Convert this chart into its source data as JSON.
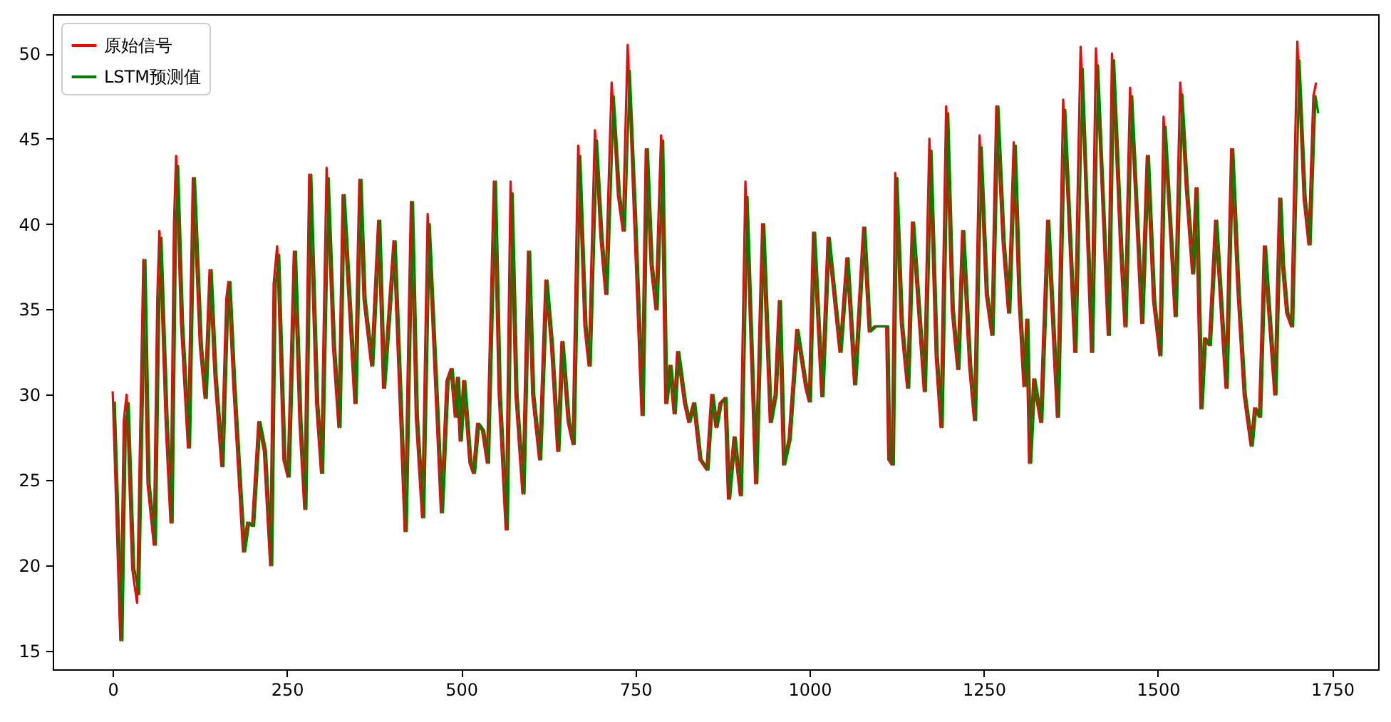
{
  "chart_data": {
    "type": "line",
    "x": [
      0,
      11,
      16,
      20,
      28,
      35,
      44,
      50,
      59,
      64,
      67,
      76,
      83,
      88,
      91,
      98,
      108,
      115,
      125,
      132,
      139,
      146,
      156,
      163,
      166,
      173,
      187,
      193,
      200,
      209,
      217,
      226,
      231,
      236,
      245,
      251,
      260,
      268,
      275,
      282,
      292,
      299,
      307,
      316,
      324,
      330,
      340,
      347,
      354,
      360,
      371,
      381,
      388,
      403,
      419,
      428,
      435,
      444,
      452,
      462,
      471,
      479,
      485,
      491,
      494,
      498,
      503,
      512,
      517,
      523,
      530,
      537,
      547,
      554,
      564,
      571,
      578,
      588,
      596,
      602,
      612,
      621,
      629,
      638,
      644,
      653,
      660,
      668,
      677,
      683,
      692,
      700,
      707,
      716,
      725,
      732,
      739,
      748,
      759,
      765,
      772,
      779,
      787,
      793,
      799,
      805,
      810,
      820,
      826,
      833,
      842,
      852,
      859,
      865,
      871,
      878,
      883,
      891,
      900,
      908,
      922,
      932,
      943,
      950,
      956,
      962,
      970,
      981,
      994,
      999,
      1005,
      1017,
      1026,
      1043,
      1053,
      1064,
      1077,
      1085,
      1093,
      1110,
      1113,
      1118,
      1123,
      1131,
      1140,
      1147,
      1164,
      1172,
      1181,
      1188,
      1196,
      1204,
      1212,
      1219,
      1229,
      1236,
      1244,
      1253,
      1261,
      1268,
      1277,
      1285,
      1293,
      1300,
      1307,
      1311,
      1315,
      1321,
      1331,
      1341,
      1355,
      1364,
      1380,
      1389,
      1404,
      1411,
      1428,
      1434,
      1446,
      1452,
      1460,
      1476,
      1484,
      1493,
      1502,
      1508,
      1524,
      1532,
      1540,
      1549,
      1554,
      1561,
      1566,
      1573,
      1582,
      1597,
      1605,
      1614,
      1623,
      1633,
      1638,
      1645,
      1652,
      1657,
      1667,
      1674,
      1678,
      1684,
      1691,
      1700,
      1709,
      1716,
      1723,
      1727
    ],
    "series": [
      {
        "name": "原始信号",
        "color": "#ff0000",
        "values": [
          30.2,
          15.6,
          28.5,
          30.0,
          19.8,
          17.8,
          37.9,
          24.8,
          21.2,
          35.6,
          39.6,
          28.4,
          22.5,
          40.1,
          44.0,
          34.2,
          26.9,
          42.7,
          32.9,
          29.8,
          37.3,
          31.2,
          25.8,
          35.6,
          36.6,
          30.6,
          20.8,
          22.5,
          22.3,
          28.4,
          26.7,
          20.0,
          36.5,
          38.7,
          26.2,
          25.2,
          38.4,
          28.4,
          23.3,
          42.9,
          29.5,
          25.4,
          43.3,
          32.9,
          28.1,
          41.7,
          34.5,
          29.5,
          42.6,
          35.6,
          31.7,
          40.2,
          30.4,
          39.0,
          22.0,
          41.3,
          28.7,
          22.8,
          40.6,
          31.3,
          23.1,
          30.8,
          31.5,
          28.7,
          31.0,
          27.3,
          30.8,
          26.0,
          25.4,
          28.3,
          27.9,
          26.0,
          42.5,
          30.0,
          22.1,
          42.5,
          30.0,
          24.2,
          38.4,
          30.0,
          26.2,
          36.7,
          32.9,
          26.7,
          33.1,
          28.4,
          27.1,
          44.6,
          34.0,
          31.7,
          45.5,
          39.2,
          35.9,
          48.3,
          41.7,
          39.6,
          50.5,
          40.6,
          28.8,
          44.4,
          37.6,
          35.0,
          45.2,
          29.5,
          31.7,
          28.9,
          32.5,
          29.5,
          28.4,
          29.5,
          26.2,
          25.6,
          30.0,
          28.1,
          29.5,
          29.8,
          23.9,
          27.5,
          24.1,
          42.5,
          24.8,
          40.0,
          28.4,
          30.0,
          35.5,
          25.9,
          27.4,
          33.8,
          30.4,
          29.6,
          39.5,
          29.9,
          39.2,
          32.5,
          38.0,
          30.6,
          39.8,
          33.7,
          34.0,
          34.0,
          26.2,
          25.9,
          43.0,
          34.2,
          30.4,
          40.1,
          30.2,
          45.0,
          32.3,
          28.1,
          46.9,
          35.0,
          31.5,
          39.6,
          31.7,
          28.5,
          45.2,
          35.9,
          33.5,
          46.9,
          39.0,
          34.8,
          44.8,
          35.6,
          30.5,
          34.4,
          26.0,
          30.9,
          28.4,
          40.2,
          28.7,
          47.3,
          32.5,
          50.4,
          32.5,
          50.3,
          33.5,
          50.0,
          38.4,
          34.0,
          48.0,
          34.2,
          44.0,
          35.5,
          32.3,
          46.3,
          34.6,
          48.3,
          42.1,
          37.1,
          42.1,
          29.2,
          33.3,
          32.9,
          40.2,
          30.4,
          44.4,
          36.2,
          30.0,
          27.0,
          29.2,
          28.7,
          38.7,
          35.6,
          30.0,
          41.5,
          37.6,
          34.8,
          34.0,
          50.7,
          41.5,
          38.8,
          47.5,
          48.3
        ]
      },
      {
        "name": "LSTM预测值",
        "color": "#008000",
        "x": [
          3,
          14,
          19,
          23,
          31,
          38,
          47,
          53,
          62,
          67,
          70,
          79,
          86,
          91,
          94,
          101,
          111,
          118,
          128,
          135,
          142,
          149,
          159,
          166,
          169,
          176,
          190,
          196,
          203,
          212,
          220,
          229,
          234,
          239,
          248,
          254,
          263,
          271,
          278,
          285,
          295,
          302,
          310,
          319,
          327,
          333,
          343,
          350,
          357,
          363,
          374,
          384,
          391,
          406,
          422,
          431,
          438,
          447,
          455,
          465,
          474,
          482,
          488,
          494,
          497,
          501,
          506,
          515,
          520,
          526,
          533,
          540,
          550,
          557,
          567,
          574,
          581,
          591,
          599,
          605,
          615,
          624,
          632,
          641,
          647,
          656,
          663,
          671,
          680,
          686,
          695,
          703,
          710,
          719,
          728,
          735,
          742,
          751,
          762,
          768,
          775,
          782,
          790,
          796,
          802,
          808,
          813,
          823,
          829,
          836,
          845,
          855,
          862,
          868,
          874,
          881,
          886,
          894,
          903,
          911,
          925,
          935,
          946,
          953,
          959,
          965,
          973,
          984,
          997,
          1002,
          1008,
          1020,
          1029,
          1046,
          1056,
          1067,
          1080,
          1088,
          1096,
          1113,
          1116,
          1121,
          1126,
          1134,
          1143,
          1150,
          1167,
          1175,
          1184,
          1191,
          1199,
          1207,
          1215,
          1222,
          1232,
          1239,
          1247,
          1256,
          1264,
          1271,
          1280,
          1288,
          1296,
          1303,
          1310,
          1314,
          1318,
          1324,
          1334,
          1344,
          1358,
          1367,
          1383,
          1392,
          1407,
          1414,
          1431,
          1437,
          1449,
          1455,
          1463,
          1479,
          1487,
          1496,
          1505,
          1511,
          1527,
          1535,
          1543,
          1552,
          1557,
          1564,
          1569,
          1576,
          1585,
          1600,
          1608,
          1617,
          1626,
          1636,
          1641,
          1648,
          1655,
          1660,
          1670,
          1677,
          1681,
          1687,
          1694,
          1703,
          1712,
          1719,
          1726,
          1730
        ],
        "values": [
          29.6,
          15.6,
          28.5,
          29.5,
          19.8,
          18.3,
          37.9,
          24.8,
          21.2,
          35.6,
          39.2,
          28.4,
          22.5,
          40.1,
          43.4,
          34.2,
          26.9,
          42.7,
          32.9,
          29.8,
          37.3,
          31.2,
          25.8,
          35.6,
          36.6,
          30.6,
          20.8,
          22.5,
          22.3,
          28.4,
          26.7,
          20.0,
          36.5,
          38.2,
          26.2,
          25.2,
          38.4,
          28.4,
          23.3,
          42.9,
          29.5,
          25.4,
          42.7,
          32.9,
          28.1,
          41.7,
          34.5,
          29.5,
          42.6,
          35.6,
          31.7,
          40.2,
          30.4,
          39.0,
          22.0,
          41.3,
          28.7,
          22.8,
          40.0,
          31.3,
          23.1,
          30.8,
          31.5,
          28.7,
          31.0,
          27.3,
          30.8,
          26.0,
          25.4,
          28.3,
          27.9,
          26.0,
          42.5,
          30.0,
          22.1,
          41.8,
          30.0,
          24.2,
          38.4,
          30.0,
          26.2,
          36.7,
          32.9,
          26.7,
          33.1,
          28.4,
          27.1,
          44.0,
          34.0,
          31.7,
          44.9,
          39.2,
          35.9,
          47.5,
          41.7,
          39.6,
          49.0,
          40.6,
          28.8,
          44.4,
          37.6,
          35.0,
          44.9,
          29.5,
          31.7,
          28.9,
          32.5,
          29.5,
          28.4,
          29.5,
          26.2,
          25.6,
          30.0,
          28.1,
          29.5,
          29.8,
          23.9,
          27.5,
          24.1,
          41.6,
          24.8,
          40.0,
          28.4,
          30.0,
          35.5,
          25.9,
          27.4,
          33.8,
          30.4,
          29.6,
          39.5,
          29.9,
          39.2,
          32.5,
          38.0,
          30.6,
          39.8,
          33.7,
          34.0,
          34.0,
          26.2,
          25.9,
          42.7,
          34.2,
          30.4,
          40.1,
          30.2,
          44.3,
          32.3,
          28.1,
          46.5,
          35.0,
          31.5,
          39.6,
          31.7,
          28.5,
          44.5,
          35.9,
          33.5,
          46.9,
          39.0,
          34.8,
          44.6,
          35.6,
          30.5,
          34.4,
          26.0,
          30.9,
          28.4,
          40.2,
          28.7,
          46.7,
          32.5,
          49.1,
          32.5,
          49.3,
          33.5,
          49.6,
          38.4,
          34.0,
          47.5,
          34.2,
          44.0,
          35.5,
          32.3,
          45.7,
          34.6,
          47.6,
          42.1,
          37.1,
          42.1,
          29.2,
          33.3,
          32.9,
          40.2,
          30.4,
          44.4,
          36.2,
          30.0,
          27.0,
          29.2,
          28.7,
          38.7,
          35.6,
          30.0,
          41.5,
          37.6,
          34.8,
          34.0,
          49.6,
          41.5,
          38.8,
          47.5,
          46.5
        ]
      }
    ],
    "xlim": [
      -86,
      1816
    ],
    "ylim": [
      13.9,
      52.3
    ],
    "xticks": [
      0,
      250,
      500,
      750,
      1000,
      1250,
      1500,
      1750
    ],
    "yticks": [
      15,
      20,
      25,
      30,
      35,
      40,
      45,
      50
    ],
    "grid": false,
    "legend": "top left",
    "line_style": "solid",
    "marker": "none"
  }
}
